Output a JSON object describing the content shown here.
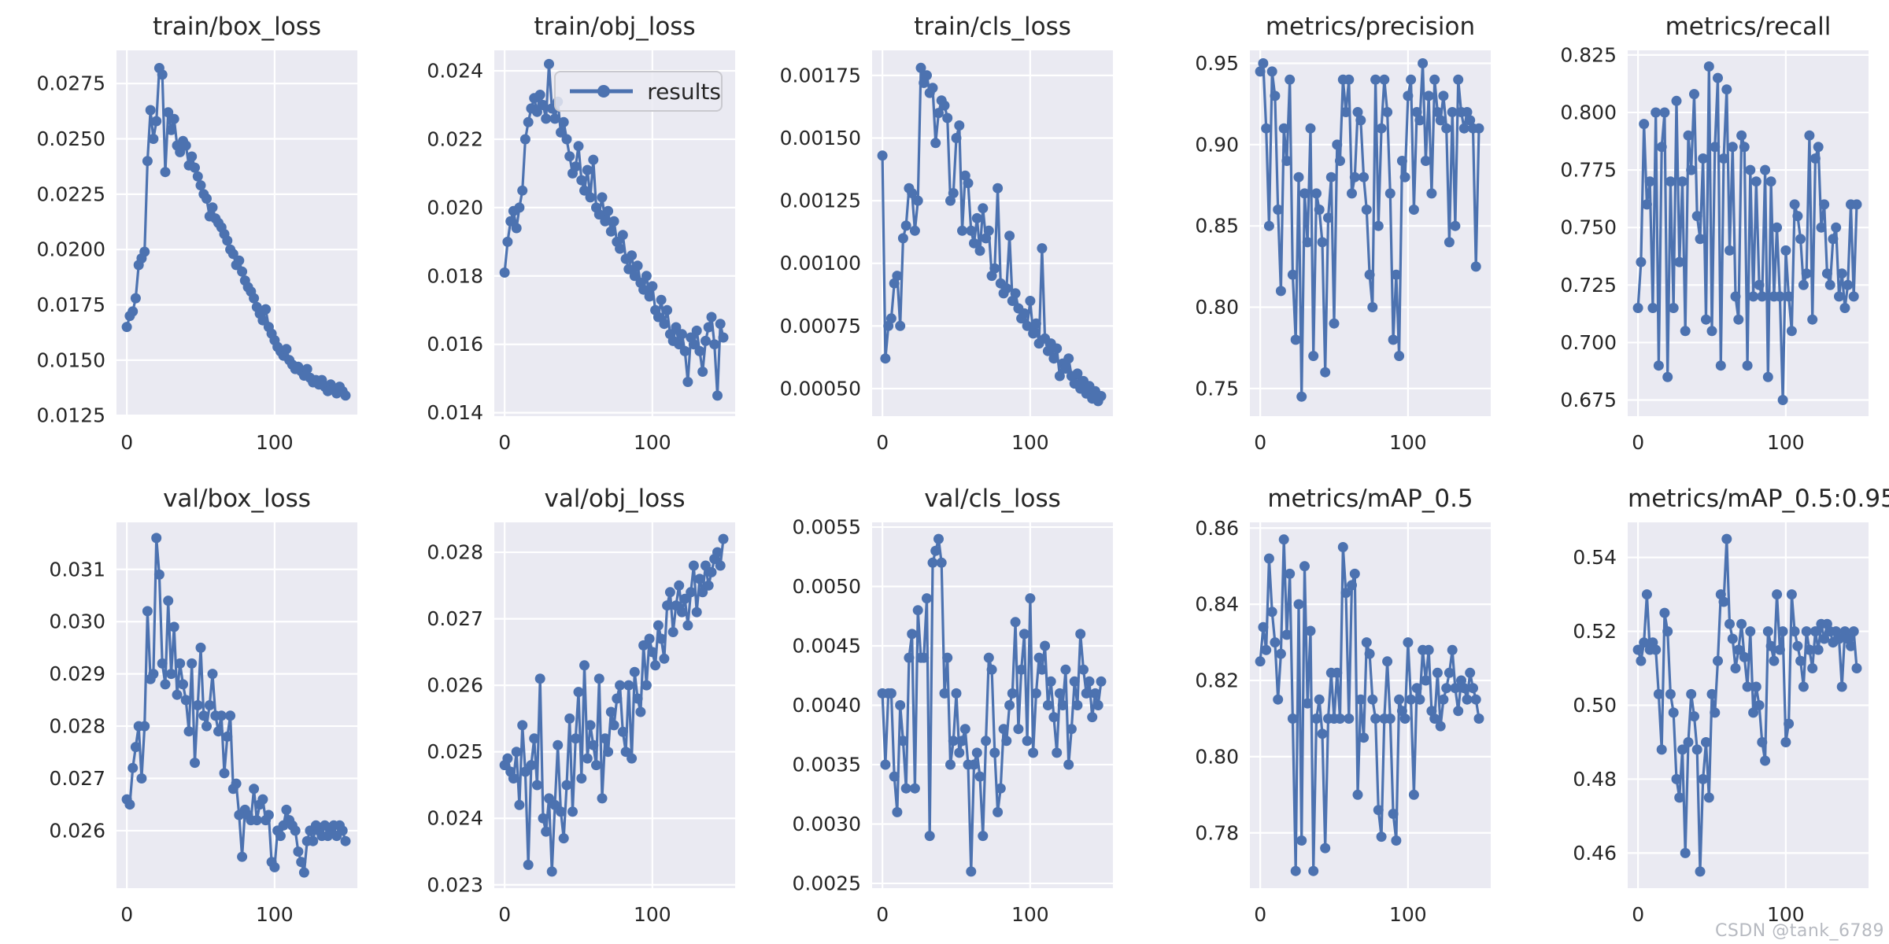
{
  "watermark": "CSDN @tank_6789",
  "colors": {
    "line": "#4c72b0",
    "axes_bg": "#eaeaf2",
    "grid": "#ffffff",
    "text": "#262626",
    "watermark": "#b7bac1",
    "legend_bg": "#ebebf3",
    "legend_border": "#c9c9cf"
  },
  "legend": {
    "label": "results",
    "subplot_index": 1
  },
  "xticks": [
    0,
    100
  ],
  "chart_data": [
    {
      "type": "line",
      "title": "train/box_loss",
      "xlim": [
        -7,
        156
      ],
      "ylim": [
        0.01247,
        0.029
      ],
      "yticks": [
        "0.0275",
        "0.0250",
        "0.0225",
        "0.0200",
        "0.0175",
        "0.0150",
        "0.0125"
      ],
      "x_start": 0,
      "x_step": 2,
      "values": [
        0.0165,
        0.017,
        0.0172,
        0.0178,
        0.0193,
        0.0196,
        0.0199,
        0.024,
        0.0263,
        0.025,
        0.0258,
        0.0282,
        0.0279,
        0.0235,
        0.0262,
        0.0254,
        0.0259,
        0.0247,
        0.0244,
        0.0249,
        0.0247,
        0.0238,
        0.0242,
        0.0237,
        0.0233,
        0.0229,
        0.0225,
        0.0223,
        0.0215,
        0.0219,
        0.0214,
        0.0212,
        0.021,
        0.0207,
        0.0204,
        0.02,
        0.0198,
        0.0193,
        0.0195,
        0.019,
        0.0186,
        0.0183,
        0.0181,
        0.0178,
        0.0174,
        0.0171,
        0.0168,
        0.0173,
        0.0165,
        0.0162,
        0.0159,
        0.0156,
        0.0154,
        0.0152,
        0.0155,
        0.015,
        0.0148,
        0.0146,
        0.0147,
        0.0145,
        0.0143,
        0.0146,
        0.0142,
        0.014,
        0.0141,
        0.0139,
        0.0141,
        0.0138,
        0.0136,
        0.0139,
        0.0137,
        0.0135,
        0.0138,
        0.0136,
        0.0134
      ]
    },
    {
      "type": "line",
      "title": "train/obj_loss",
      "xlim": [
        -7,
        156
      ],
      "ylim": [
        0.0139,
        0.0246
      ],
      "yticks": [
        "0.024",
        "0.022",
        "0.020",
        "0.018",
        "0.016",
        "0.014"
      ],
      "x_start": 0,
      "x_step": 2,
      "values": [
        0.0181,
        0.019,
        0.0196,
        0.0199,
        0.0194,
        0.02,
        0.0205,
        0.022,
        0.0225,
        0.0229,
        0.0232,
        0.0228,
        0.0233,
        0.023,
        0.0226,
        0.0242,
        0.0229,
        0.0226,
        0.0231,
        0.0222,
        0.0225,
        0.022,
        0.0215,
        0.021,
        0.0212,
        0.0218,
        0.0208,
        0.0205,
        0.0211,
        0.0203,
        0.0214,
        0.02,
        0.0198,
        0.0203,
        0.0196,
        0.0199,
        0.0193,
        0.0196,
        0.019,
        0.0188,
        0.0192,
        0.0185,
        0.0182,
        0.0186,
        0.018,
        0.0183,
        0.0178,
        0.0176,
        0.018,
        0.0174,
        0.0177,
        0.017,
        0.0168,
        0.0173,
        0.0166,
        0.017,
        0.0163,
        0.0161,
        0.0165,
        0.016,
        0.0163,
        0.0158,
        0.0149,
        0.0162,
        0.016,
        0.0164,
        0.0158,
        0.0152,
        0.0161,
        0.0165,
        0.0168,
        0.016,
        0.0145,
        0.0166,
        0.0162
      ]
    },
    {
      "type": "line",
      "title": "train/cls_loss",
      "xlim": [
        -7,
        156
      ],
      "ylim": [
        0.00039,
        0.00185
      ],
      "yticks": [
        "0.00175",
        "0.00150",
        "0.00125",
        "0.00100",
        "0.00075",
        "0.00050"
      ],
      "x_start": 0,
      "x_step": 2,
      "values": [
        0.00143,
        0.00062,
        0.00075,
        0.00078,
        0.00092,
        0.00095,
        0.00075,
        0.0011,
        0.00115,
        0.0013,
        0.00128,
        0.00113,
        0.00125,
        0.00178,
        0.00172,
        0.00175,
        0.00168,
        0.0017,
        0.00148,
        0.0016,
        0.00165,
        0.00163,
        0.00158,
        0.00125,
        0.00128,
        0.0015,
        0.00155,
        0.00113,
        0.00135,
        0.00132,
        0.00113,
        0.00108,
        0.00118,
        0.00105,
        0.00122,
        0.0011,
        0.00113,
        0.00095,
        0.00098,
        0.0013,
        0.00092,
        0.00088,
        0.0009,
        0.00111,
        0.00085,
        0.00088,
        0.00082,
        0.00078,
        0.0008,
        0.00075,
        0.00085,
        0.00072,
        0.00076,
        0.00068,
        0.00106,
        0.0007,
        0.00065,
        0.00068,
        0.00062,
        0.00066,
        0.00055,
        0.0006,
        0.00058,
        0.00062,
        0.00055,
        0.00052,
        0.00056,
        0.0005,
        0.00053,
        0.00048,
        0.00051,
        0.00046,
        0.00049,
        0.00045,
        0.00047
      ]
    },
    {
      "type": "line",
      "title": "metrics/precision",
      "xlim": [
        -7,
        156
      ],
      "ylim": [
        0.733,
        0.958
      ],
      "yticks": [
        "0.95",
        "0.90",
        "0.85",
        "0.80",
        "0.75"
      ],
      "x_start": 0,
      "x_step": 2,
      "values": [
        0.945,
        0.95,
        0.91,
        0.85,
        0.945,
        0.93,
        0.86,
        0.81,
        0.91,
        0.89,
        0.94,
        0.82,
        0.78,
        0.88,
        0.745,
        0.87,
        0.84,
        0.91,
        0.77,
        0.87,
        0.86,
        0.84,
        0.76,
        0.855,
        0.88,
        0.79,
        0.9,
        0.89,
        0.94,
        0.92,
        0.94,
        0.87,
        0.88,
        0.92,
        0.915,
        0.88,
        0.86,
        0.82,
        0.8,
        0.94,
        0.85,
        0.91,
        0.94,
        0.92,
        0.87,
        0.78,
        0.82,
        0.77,
        0.89,
        0.88,
        0.93,
        0.94,
        0.86,
        0.92,
        0.915,
        0.95,
        0.89,
        0.93,
        0.87,
        0.94,
        0.92,
        0.915,
        0.93,
        0.91,
        0.84,
        0.92,
        0.85,
        0.94,
        0.92,
        0.91,
        0.92,
        0.915,
        0.91,
        0.825,
        0.91
      ]
    },
    {
      "type": "line",
      "title": "metrics/recall",
      "xlim": [
        -7,
        156
      ],
      "ylim": [
        0.668,
        0.827
      ],
      "yticks": [
        "0.825",
        "0.800",
        "0.775",
        "0.750",
        "0.725",
        "0.700",
        "0.675"
      ],
      "x_start": 0,
      "x_step": 2,
      "values": [
        0.715,
        0.735,
        0.795,
        0.76,
        0.77,
        0.715,
        0.8,
        0.69,
        0.785,
        0.8,
        0.685,
        0.77,
        0.715,
        0.805,
        0.735,
        0.77,
        0.705,
        0.79,
        0.775,
        0.808,
        0.755,
        0.745,
        0.78,
        0.71,
        0.82,
        0.705,
        0.785,
        0.815,
        0.69,
        0.78,
        0.81,
        0.74,
        0.785,
        0.72,
        0.71,
        0.79,
        0.785,
        0.69,
        0.775,
        0.72,
        0.77,
        0.725,
        0.72,
        0.775,
        0.685,
        0.77,
        0.72,
        0.75,
        0.72,
        0.675,
        0.74,
        0.72,
        0.705,
        0.76,
        0.755,
        0.745,
        0.725,
        0.73,
        0.79,
        0.71,
        0.78,
        0.785,
        0.75,
        0.76,
        0.73,
        0.725,
        0.745,
        0.75,
        0.72,
        0.73,
        0.715,
        0.725,
        0.76,
        0.72,
        0.76
      ]
    },
    {
      "type": "line",
      "title": "val/box_loss",
      "xlim": [
        -7,
        156
      ],
      "ylim": [
        0.0249,
        0.0319
      ],
      "yticks": [
        "0.031",
        "0.030",
        "0.029",
        "0.028",
        "0.027",
        "0.026"
      ],
      "x_start": 0,
      "x_step": 2,
      "values": [
        0.0266,
        0.0265,
        0.0272,
        0.0276,
        0.028,
        0.027,
        0.028,
        0.0302,
        0.0289,
        0.029,
        0.0316,
        0.0309,
        0.0292,
        0.0288,
        0.0304,
        0.029,
        0.0299,
        0.0286,
        0.0292,
        0.0288,
        0.0285,
        0.0279,
        0.0292,
        0.0273,
        0.0284,
        0.0295,
        0.0282,
        0.028,
        0.0284,
        0.029,
        0.0282,
        0.0279,
        0.0282,
        0.0271,
        0.0278,
        0.0282,
        0.0268,
        0.0269,
        0.0263,
        0.0255,
        0.0264,
        0.0263,
        0.0262,
        0.0268,
        0.0262,
        0.0265,
        0.0266,
        0.0262,
        0.0263,
        0.0254,
        0.0253,
        0.026,
        0.0259,
        0.0261,
        0.0264,
        0.0262,
        0.0261,
        0.026,
        0.0256,
        0.0254,
        0.0252,
        0.0258,
        0.026,
        0.0258,
        0.0261,
        0.026,
        0.0259,
        0.0261,
        0.0259,
        0.026,
        0.0261,
        0.0259,
        0.0261,
        0.026,
        0.0258
      ]
    },
    {
      "type": "line",
      "title": "val/obj_loss",
      "xlim": [
        -7,
        156
      ],
      "ylim": [
        0.02295,
        0.02845
      ],
      "yticks": [
        "0.028",
        "0.027",
        "0.026",
        "0.025",
        "0.024",
        "0.023"
      ],
      "x_start": 0,
      "x_step": 2,
      "values": [
        0.0248,
        0.0249,
        0.0247,
        0.0246,
        0.025,
        0.0242,
        0.0254,
        0.0247,
        0.0233,
        0.0248,
        0.0252,
        0.0245,
        0.0261,
        0.024,
        0.0238,
        0.0243,
        0.0232,
        0.0242,
        0.0251,
        0.0241,
        0.0237,
        0.0245,
        0.0255,
        0.0241,
        0.0252,
        0.0259,
        0.0246,
        0.0263,
        0.0249,
        0.0254,
        0.0251,
        0.0248,
        0.0261,
        0.0243,
        0.0252,
        0.025,
        0.0256,
        0.0254,
        0.0258,
        0.026,
        0.0253,
        0.025,
        0.026,
        0.0249,
        0.0262,
        0.0258,
        0.0256,
        0.0266,
        0.026,
        0.0267,
        0.0265,
        0.0263,
        0.0269,
        0.0267,
        0.0264,
        0.0272,
        0.0274,
        0.0268,
        0.0272,
        0.0275,
        0.0271,
        0.0273,
        0.0269,
        0.0274,
        0.0278,
        0.0271,
        0.0276,
        0.0274,
        0.0278,
        0.0275,
        0.0277,
        0.0279,
        0.028,
        0.0278,
        0.0282
      ]
    },
    {
      "type": "line",
      "title": "val/cls_loss",
      "xlim": [
        -7,
        156
      ],
      "ylim": [
        0.00246,
        0.00554
      ],
      "yticks": [
        "0.0055",
        "0.0050",
        "0.0045",
        "0.0040",
        "0.0035",
        "0.0030",
        "0.0025"
      ],
      "x_start": 0,
      "x_step": 2,
      "values": [
        0.0041,
        0.0035,
        0.0041,
        0.0041,
        0.0034,
        0.0031,
        0.004,
        0.0037,
        0.0033,
        0.0044,
        0.0046,
        0.0033,
        0.0048,
        0.0044,
        0.0044,
        0.0049,
        0.0029,
        0.0052,
        0.0053,
        0.0054,
        0.0052,
        0.0041,
        0.0044,
        0.0035,
        0.0037,
        0.0041,
        0.0036,
        0.0037,
        0.0038,
        0.0035,
        0.0026,
        0.0035,
        0.0036,
        0.0034,
        0.0029,
        0.0037,
        0.0044,
        0.0043,
        0.0036,
        0.0031,
        0.0033,
        0.0038,
        0.0037,
        0.004,
        0.0041,
        0.0047,
        0.0038,
        0.0043,
        0.0046,
        0.0037,
        0.0049,
        0.0036,
        0.0041,
        0.0044,
        0.0043,
        0.0045,
        0.004,
        0.0042,
        0.0039,
        0.0036,
        0.0041,
        0.004,
        0.0043,
        0.0035,
        0.0038,
        0.0042,
        0.004,
        0.0046,
        0.0043,
        0.0041,
        0.0042,
        0.0039,
        0.0041,
        0.004,
        0.0042
      ]
    },
    {
      "type": "line",
      "title": "metrics/mAP_0.5",
      "xlim": [
        -7,
        156
      ],
      "ylim": [
        0.7655,
        0.8615
      ],
      "yticks": [
        "0.86",
        "0.84",
        "0.82",
        "0.80",
        "0.78"
      ],
      "x_start": 0,
      "x_step": 2,
      "values": [
        0.825,
        0.834,
        0.828,
        0.852,
        0.838,
        0.83,
        0.815,
        0.827,
        0.857,
        0.832,
        0.848,
        0.81,
        0.77,
        0.84,
        0.778,
        0.85,
        0.814,
        0.833,
        0.77,
        0.81,
        0.815,
        0.806,
        0.776,
        0.81,
        0.822,
        0.81,
        0.822,
        0.81,
        0.855,
        0.843,
        0.81,
        0.845,
        0.848,
        0.79,
        0.815,
        0.805,
        0.83,
        0.827,
        0.815,
        0.81,
        0.786,
        0.779,
        0.81,
        0.825,
        0.81,
        0.785,
        0.778,
        0.815,
        0.812,
        0.81,
        0.83,
        0.815,
        0.79,
        0.818,
        0.815,
        0.828,
        0.82,
        0.828,
        0.812,
        0.81,
        0.822,
        0.808,
        0.815,
        0.818,
        0.822,
        0.828,
        0.818,
        0.812,
        0.82,
        0.818,
        0.815,
        0.822,
        0.818,
        0.815,
        0.81
      ]
    },
    {
      "type": "line",
      "title": "metrics/mAP_0.5:0.95",
      "xlim": [
        -7,
        156
      ],
      "ylim": [
        0.4505,
        0.5495
      ],
      "yticks": [
        "0.54",
        "0.52",
        "0.50",
        "0.48",
        "0.46"
      ],
      "x_start": 0,
      "x_step": 2,
      "values": [
        0.515,
        0.512,
        0.517,
        0.53,
        0.515,
        0.517,
        0.515,
        0.503,
        0.488,
        0.525,
        0.52,
        0.503,
        0.498,
        0.48,
        0.475,
        0.488,
        0.46,
        0.49,
        0.503,
        0.497,
        0.488,
        0.455,
        0.48,
        0.49,
        0.475,
        0.503,
        0.498,
        0.512,
        0.53,
        0.528,
        0.545,
        0.522,
        0.518,
        0.51,
        0.515,
        0.522,
        0.513,
        0.505,
        0.52,
        0.498,
        0.505,
        0.5,
        0.49,
        0.485,
        0.52,
        0.516,
        0.512,
        0.53,
        0.515,
        0.52,
        0.49,
        0.495,
        0.53,
        0.52,
        0.516,
        0.512,
        0.505,
        0.52,
        0.515,
        0.51,
        0.52,
        0.515,
        0.522,
        0.518,
        0.522,
        0.52,
        0.517,
        0.52,
        0.518,
        0.505,
        0.52,
        0.518,
        0.516,
        0.52,
        0.51
      ]
    }
  ]
}
